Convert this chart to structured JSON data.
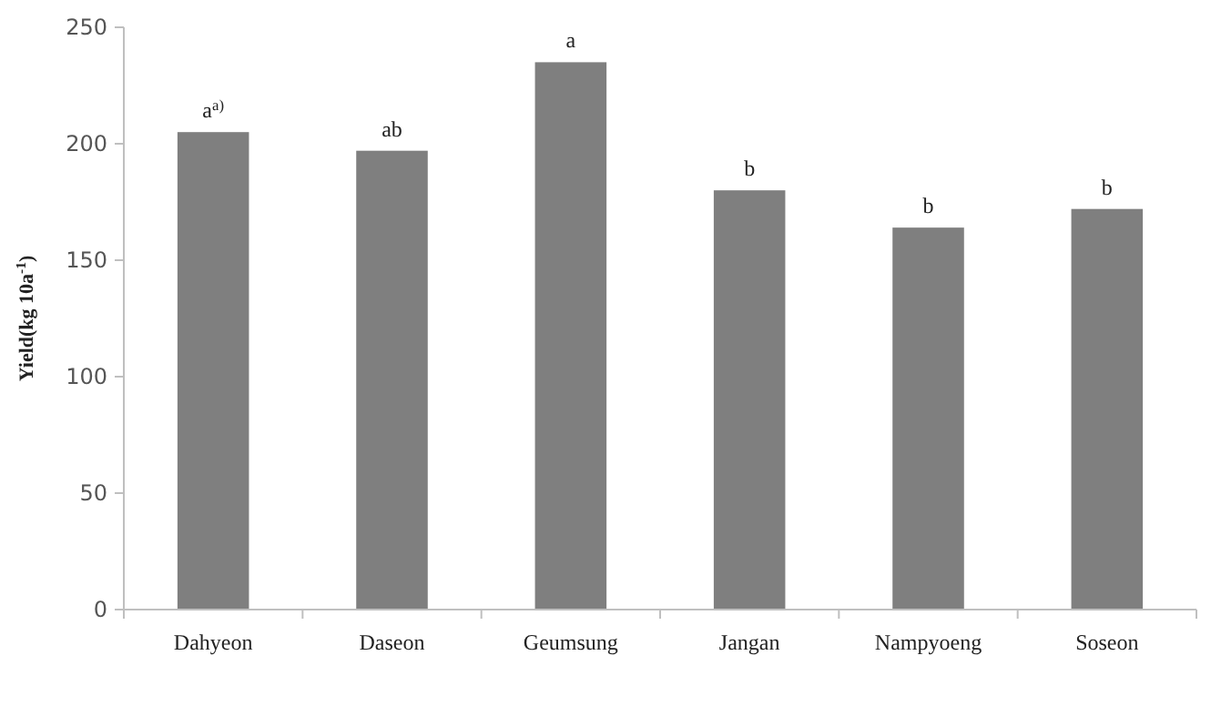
{
  "chart_data": {
    "type": "bar",
    "ylabel": "Yield(kg 10a$^{-1}$)",
    "categories": [
      "Dahyeon",
      "Daseon",
      "Geumsung",
      "Jangan",
      "Nampyoeng",
      "Soseon"
    ],
    "values": [
      205,
      197,
      235,
      180,
      164,
      172
    ],
    "color": "#7f7f7f",
    "ylim": [
      0,
      250
    ],
    "yticks": [
      0,
      50,
      100,
      150,
      200,
      250
    ],
    "grid": false,
    "annotations": [
      {
        "text": "a$^{a)}$",
        "x": "Dahyeon",
        "y": 205
      },
      {
        "text": "ab",
        "x": "Daseon",
        "y": 197
      },
      {
        "text": "a",
        "x": "Geumsung",
        "y": 235
      },
      {
        "text": "b",
        "x": "Jangan",
        "y": 180
      },
      {
        "text": "b",
        "x": "Nampyoeng",
        "y": 164
      },
      {
        "text": "b",
        "x": "Soseon",
        "y": 172
      }
    ]
  }
}
